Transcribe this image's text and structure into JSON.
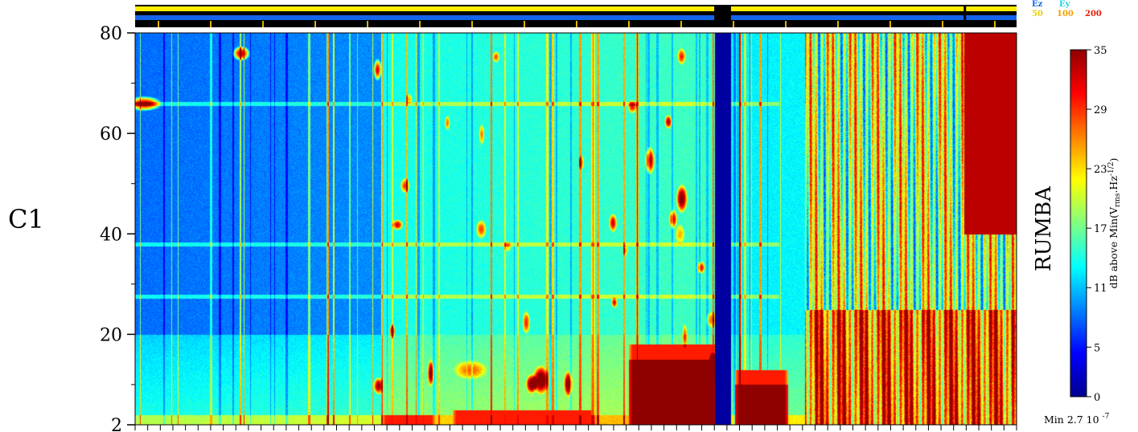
{
  "chart_data": {
    "type": "heatmap",
    "panel_label": "C1",
    "instrument_label": "RUMBA",
    "yticks": [
      2,
      20,
      40,
      60,
      80
    ],
    "ylim": [
      2,
      80
    ],
    "colorbar": {
      "label": "dB above Min(V<sub>rms</sub>.Hz<sup>-1/2</sup>)",
      "label_plain": "dB above Min(Vrms.Hz-1/2)",
      "ticks": [
        0,
        5,
        11,
        17,
        23,
        29,
        35
      ],
      "range": [
        0,
        35
      ],
      "min_label": "Min 2.7 10",
      "min_exponent": "-7",
      "colors": [
        "#00008f",
        "#0000ff",
        "#0080ff",
        "#00ffff",
        "#80ff80",
        "#ffff00",
        "#ff8000",
        "#ff0000",
        "#8f0000"
      ]
    },
    "status_bar": {
      "legend_top": [
        {
          "label": "Ez",
          "color": "#1560e0"
        },
        {
          "label": "Ey",
          "color": "#18d4e8"
        }
      ],
      "legend_bottom": [
        {
          "label": "50",
          "color": "#e8d000"
        },
        {
          "label": "100",
          "color": "#f0a000"
        },
        {
          "label": "200",
          "color": "#e02010"
        }
      ],
      "bands": [
        {
          "name": "yellow",
          "color": "#ffee00"
        },
        {
          "name": "blue",
          "color": "#1565e8"
        }
      ],
      "gap_fraction": [
        0.657,
        0.676
      ],
      "marker_fraction": 0.94
    },
    "x_tick_count": 70,
    "features": {
      "data_gap_fraction": [
        0.657,
        0.676
      ],
      "horizontal_lines_khz": [
        66,
        38,
        27.5
      ],
      "low_frequency_bursts": [
        {
          "x": [
            0.28,
            0.34
          ],
          "f_top": 4
        },
        {
          "x": [
            0.36,
            0.52
          ],
          "f_top": 5
        },
        {
          "x": [
            0.56,
            0.66
          ],
          "f_top": 18
        },
        {
          "x": [
            0.68,
            0.74
          ],
          "f_top": 13
        },
        {
          "x": [
            0.76,
            1.0
          ],
          "f_top": 80
        }
      ]
    }
  }
}
